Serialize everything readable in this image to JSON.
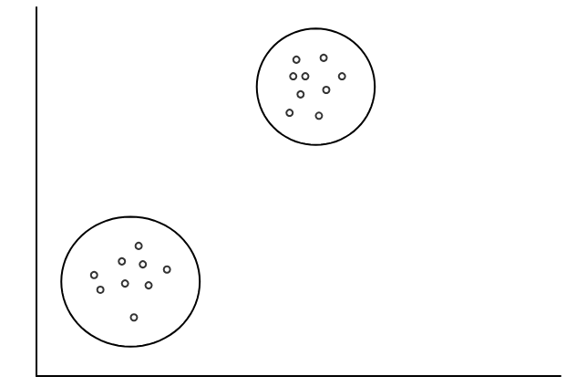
{
  "chart_data": {
    "type": "scatter",
    "xlim": [
      0,
      100
    ],
    "ylim": [
      0,
      100
    ],
    "tick_labels": false,
    "grid": false,
    "marker": "circle",
    "color": "#000000",
    "series": [
      {
        "x": [
          49.6,
          54.8,
          49.0,
          51.3,
          58.3,
          50.4,
          55.3,
          48.3,
          53.9
        ],
        "y": [
          85.8,
          86.3,
          81.3,
          81.3,
          81.3,
          76.4,
          77.6,
          71.4,
          70.6
        ]
      },
      {
        "x": [
          19.5,
          16.3,
          20.3,
          24.9,
          11.0,
          12.2,
          16.9,
          21.4,
          18.6
        ],
        "y": [
          35.3,
          31.1,
          30.3,
          28.9,
          27.4,
          23.4,
          25.1,
          24.6,
          15.9
        ]
      }
    ]
  }
}
